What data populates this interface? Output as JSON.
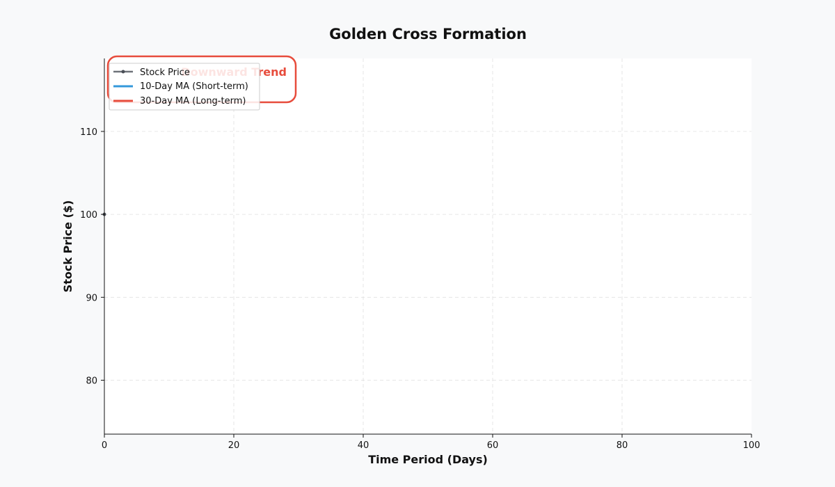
{
  "chart_data": {
    "type": "line",
    "title": "Golden Cross Formation",
    "xlabel": "Time Period (Days)",
    "ylabel": "Stock Price ($)",
    "xlim": [
      0,
      100
    ],
    "ylim": [
      73.5,
      118.8
    ],
    "xticks": [
      0,
      20,
      40,
      60,
      80,
      100
    ],
    "yticks": [
      80,
      90,
      100,
      110
    ],
    "grid": true,
    "legend_position": "top-left",
    "series": [
      {
        "name": "Stock Price",
        "color": "#4a4f57",
        "marker": "circle",
        "x": [
          0
        ],
        "y": [
          100
        ]
      },
      {
        "name": "10-Day MA (Short-term)",
        "color": "#3498db",
        "x": [],
        "y": []
      },
      {
        "name": "30-Day MA (Long-term)",
        "color": "#e74c3c",
        "x": [],
        "y": []
      }
    ],
    "annotation": {
      "text": "Downward Trend",
      "color": "#e74c3c"
    }
  },
  "colors": {
    "background": "#f8f9fa",
    "plot_background": "#ffffff",
    "grid": "#e0e0e0"
  }
}
